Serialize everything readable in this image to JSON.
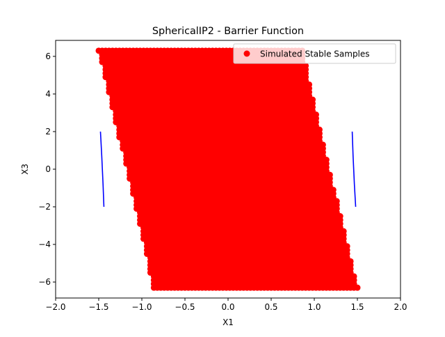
{
  "chart_data": {
    "type": "scatter",
    "title": "SphericalIP2 - Barrier Function",
    "xlabel": "X1",
    "ylabel": "X3",
    "xlim": [
      -2.0,
      2.0
    ],
    "ylim": [
      -6.85,
      6.85
    ],
    "xticks": [
      -2.0,
      -1.5,
      -1.0,
      -0.5,
      0.0,
      0.5,
      1.0,
      1.5,
      2.0
    ],
    "xtick_labels": [
      "−2.0",
      "−1.5",
      "−1.0",
      "−0.5",
      "0.0",
      "0.5",
      "1.0",
      "1.5",
      "2.0"
    ],
    "yticks": [
      -6,
      -4,
      -2,
      0,
      2,
      4,
      6
    ],
    "ytick_labels": [
      "−6",
      "−4",
      "−2",
      "0",
      "2",
      "4",
      "6"
    ],
    "grid": false,
    "legend": {
      "placement": "top-right",
      "entries": [
        {
          "label": "Simulated Stable Samples",
          "color": "#ff0000",
          "marker": "circle"
        }
      ]
    },
    "series": [
      {
        "name": "Simulated Stable Samples",
        "kind": "scatter_grid",
        "color": "#ff0000",
        "x_start": -1.5,
        "x_step": 0.04,
        "x_count": 76,
        "y_min": -6.3,
        "y_max": 6.3,
        "y_step": 0.2,
        "boundary": {
          "x": [
            -1.5,
            -1.23,
            -1.0,
            -0.87,
            1.5
          ],
          "y_lower": [
            6.3,
            1.1,
            -3.3,
            -6.3,
            -6.3
          ]
        },
        "upper_boundary": {
          "x": [
            -1.5,
            0.87,
            1.0,
            1.23,
            1.5
          ],
          "y_upper": [
            6.3,
            6.3,
            3.3,
            -1.1,
            -6.3
          ]
        }
      },
      {
        "kind": "line",
        "color": "#0000ff",
        "x": [
          -1.48,
          -1.465,
          -1.45,
          -1.44
        ],
        "y": [
          2.0,
          0.7,
          -0.8,
          -2.0
        ]
      },
      {
        "kind": "line",
        "color": "#0000ff",
        "x": [
          1.44,
          1.45,
          1.465,
          1.48
        ],
        "y": [
          2.0,
          0.7,
          -0.8,
          -2.0
        ]
      }
    ]
  }
}
